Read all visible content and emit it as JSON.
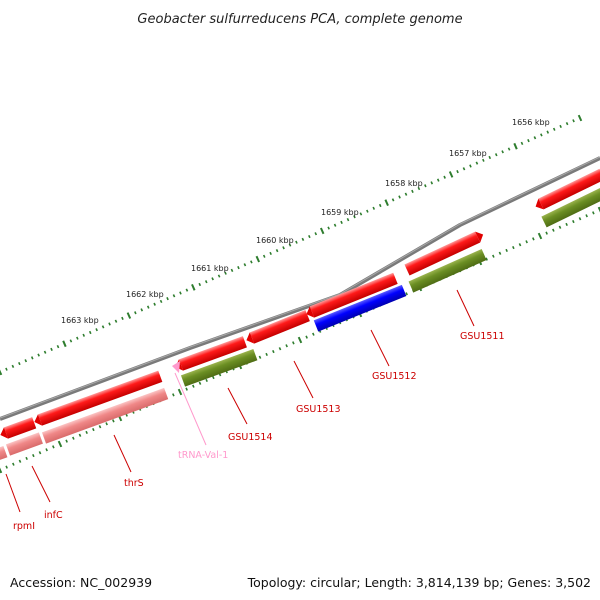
{
  "title": "Geobacter sulfurreducens PCA, complete genome",
  "footer": {
    "accession": "Accession: NC_002939",
    "summary": "Topology: circular; Length: 3,814,139 bp; Genes: 3,502"
  },
  "ruler": {
    "labels": [
      "1656 kbp",
      "1657 kbp",
      "1658 kbp",
      "1659 kbp",
      "1660 kbp",
      "1661 kbp",
      "1662 kbp",
      "1663 kbp"
    ]
  },
  "colors": {
    "backbone": "#7a7a7a",
    "gene": "#ff0000",
    "gene_dim": "#f08888",
    "olive": "#6b8e23",
    "blue": "#0000ff",
    "trna": "#ff99cc",
    "tick": "#2e7d2e",
    "label": "#cc0000"
  },
  "features": {
    "gsu1511": "GSU1511",
    "gsu1512": "GSU1512",
    "gsu1513": "GSU1513",
    "gsu1514": "GSU1514",
    "trna_val_1": "tRNA-Val-1",
    "thrs": "thrS",
    "infc": "infC",
    "rpmi": "rpmI"
  }
}
